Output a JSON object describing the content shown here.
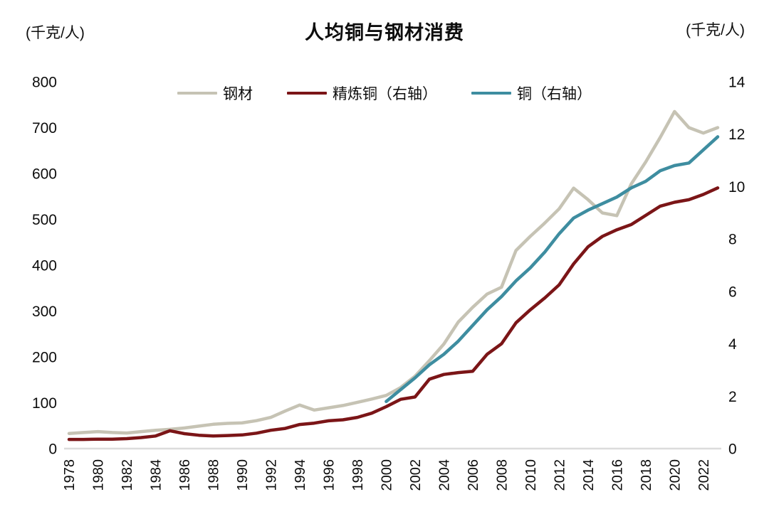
{
  "title": "人均铜与钢材消费",
  "left_axis_unit": "(千克/人)",
  "right_axis_unit": "(千克/人)",
  "colors": {
    "steel": "#c6c3b4",
    "refined_copper": "#7b1517",
    "copper": "#3e8da0",
    "axis_line": "#dcdcdc",
    "text": "#0d0d0d"
  },
  "chart_data": {
    "type": "line",
    "title": "人均铜与钢材消费",
    "grid": false,
    "legend_position": "top-center",
    "x_start": 1978,
    "x_end": 2023,
    "x_tick_labels": [
      "1978",
      "1980",
      "1982",
      "1984",
      "1986",
      "1988",
      "1990",
      "1992",
      "1994",
      "1996",
      "1998",
      "2000",
      "2002",
      "2004",
      "2006",
      "2008",
      "2010",
      "2012",
      "2014",
      "2016",
      "2018",
      "2020",
      "2022"
    ],
    "left_axis": {
      "unit": "(千克/人)",
      "min": 0,
      "max": 800,
      "tick_step": 100,
      "tick_labels": [
        "0",
        "100",
        "200",
        "300",
        "400",
        "500",
        "600",
        "700",
        "800"
      ]
    },
    "right_axis": {
      "unit": "(千克/人)",
      "min": 0,
      "max": 14,
      "tick_step": 2,
      "tick_labels": [
        "0",
        "2",
        "4",
        "6",
        "8",
        "10",
        "12",
        "14"
      ]
    },
    "series": [
      {
        "key": "steel",
        "name": "钢材",
        "axis": "left",
        "color": "#c6c3b4",
        "values": [
          33,
          35,
          37,
          35,
          34,
          37,
          40,
          42,
          45,
          49,
          53,
          55,
          56,
          61,
          68,
          82,
          95,
          84,
          89,
          94,
          101,
          108,
          116,
          133,
          158,
          192,
          228,
          276,
          308,
          337,
          352,
          432,
          463,
          492,
          523,
          568,
          543,
          514,
          508,
          577,
          625,
          678,
          735,
          700,
          688,
          700
        ]
      },
      {
        "key": "refined_copper",
        "name": "精炼铜（右轴）",
        "axis": "right",
        "color": "#7b1517",
        "values": [
          0.35,
          0.35,
          0.36,
          0.36,
          0.38,
          0.42,
          0.48,
          0.68,
          0.57,
          0.51,
          0.48,
          0.5,
          0.52,
          0.59,
          0.7,
          0.77,
          0.92,
          0.97,
          1.06,
          1.1,
          1.19,
          1.35,
          1.6,
          1.88,
          1.97,
          2.65,
          2.83,
          2.9,
          2.95,
          3.6,
          4.0,
          4.8,
          5.3,
          5.75,
          6.25,
          7.05,
          7.7,
          8.1,
          8.35,
          8.55,
          8.9,
          9.25,
          9.4,
          9.5,
          9.7,
          9.95
        ]
      },
      {
        "key": "copper",
        "name": "铜（右轴）",
        "axis": "right",
        "color": "#3e8da0",
        "values": [
          null,
          null,
          null,
          null,
          null,
          null,
          null,
          null,
          null,
          null,
          null,
          null,
          null,
          null,
          null,
          null,
          null,
          null,
          null,
          null,
          null,
          null,
          1.8,
          2.25,
          2.7,
          3.2,
          3.6,
          4.1,
          4.7,
          5.3,
          5.8,
          6.4,
          6.9,
          7.5,
          8.2,
          8.8,
          9.1,
          9.35,
          9.6,
          9.95,
          10.2,
          10.6,
          10.8,
          10.9,
          11.4,
          11.9
        ]
      }
    ]
  }
}
